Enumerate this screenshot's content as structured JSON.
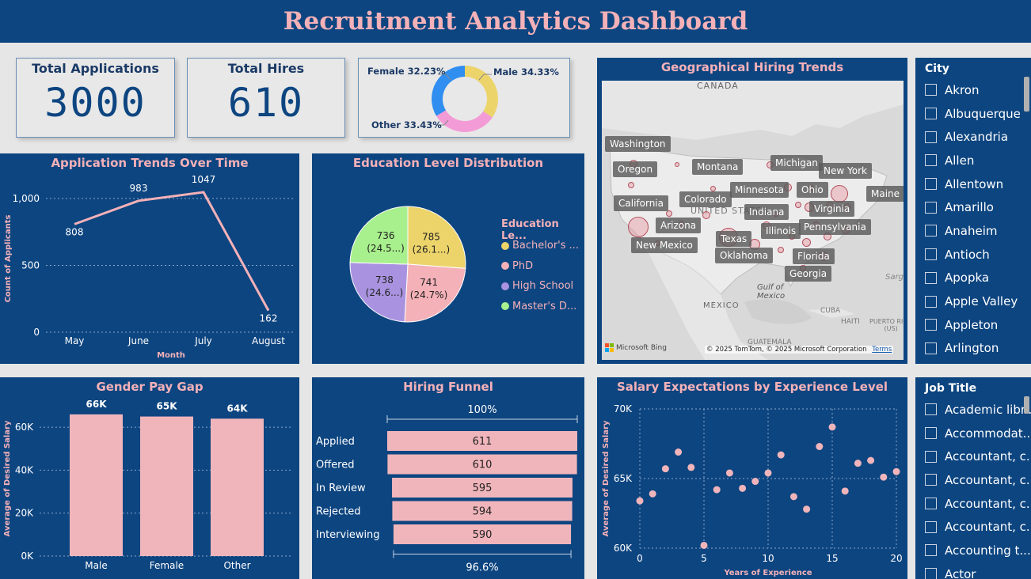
{
  "header": {
    "title": "Recruitment Analytics Dashboard"
  },
  "kpis": {
    "total_applications": {
      "label": "Total Applications",
      "value": "3000"
    },
    "total_hires": {
      "label": "Total Hires",
      "value": "610"
    }
  },
  "gender_donut": {
    "female": "Female 32.23%",
    "male": "Male 34.33%",
    "other": "Other 33.43%",
    "colors": {
      "female": "#2f8ef0",
      "male": "#ecd46b",
      "other": "#f39bd6"
    }
  },
  "application_trends": {
    "title": "Application Trends Over Time",
    "xlabel": "Month",
    "ylabel": "Count of Applicants",
    "y_ticks": [
      "0",
      "500",
      "1,000"
    ]
  },
  "education": {
    "title": "Education Level Distribution",
    "legend_title": "Education Le...",
    "legend": [
      "Bachelor's ...",
      "PhD",
      "High School",
      "Master's D..."
    ],
    "slice_labels": [
      {
        "v": "785",
        "p": "(26.1...)"
      },
      {
        "v": "741",
        "p": "(24.7%)"
      },
      {
        "v": "738",
        "p": "(24.6...)"
      },
      {
        "v": "736",
        "p": "(24.5...)"
      }
    ]
  },
  "map": {
    "title": "Geographical Hiring Trends",
    "countries": {
      "canada": "CANADA",
      "mexico": "MEXICO",
      "us": "UNITED STATES",
      "gulf": "Gulf of\nMexico",
      "cuba": "CUBA",
      "haiti": "HAITI",
      "pr": "PUERTO RICO\n(US)",
      "guatemala": "GUATEMALA",
      "sargasso": "Sarg"
    },
    "states": [
      "Washington",
      "Oregon",
      "Montana",
      "Michigan",
      "New York",
      "Minnesota",
      "Ohio",
      "Maine",
      "California",
      "Colorado",
      "Indiana",
      "Virginia",
      "Arizona",
      "Illinois",
      "Pennsylvania",
      "Texas",
      "New Mexico",
      "Oklahoma",
      "Florida",
      "Georgia"
    ],
    "bing": "Microsoft Bing",
    "copyright": "© 2025 TomTom, © 2025 Microsoft Corporation",
    "terms": "Terms"
  },
  "city_slicer": {
    "title": "City",
    "items": [
      "Akron",
      "Albuquerque",
      "Alexandria",
      "Allen",
      "Allentown",
      "Amarillo",
      "Anaheim",
      "Antioch",
      "Apopka",
      "Apple Valley",
      "Appleton",
      "Arlington"
    ]
  },
  "gender_pay": {
    "title": "Gender Pay Gap",
    "ylabel": "Average of Desired Salary",
    "y_ticks": [
      "0K",
      "20K",
      "40K",
      "60K"
    ],
    "data_labels": [
      "66K",
      "65K",
      "64K"
    ]
  },
  "funnel": {
    "title": "Hiring Funnel",
    "top_pct": "100%",
    "bottom_pct": "96.6%",
    "stages": [
      "Applied",
      "Offered",
      "In Review",
      "Rejected",
      "Interviewing"
    ]
  },
  "salary_scatter": {
    "title": "Salary Expectations by Experience Level",
    "xlabel": "Years of Experience",
    "ylabel": "Average of Desired Salary",
    "y_ticks": [
      "60K",
      "65K",
      "70K"
    ],
    "x_ticks": [
      "0",
      "5",
      "10",
      "15",
      "20"
    ]
  },
  "job_slicer": {
    "title": "Job Title",
    "items": [
      "Academic libr...",
      "Accommodat...",
      "Accountant, c...",
      "Accountant, c...",
      "Accountant, c...",
      "Accountant, c...",
      "Accounting t...",
      "Actor"
    ]
  },
  "chart_data": [
    {
      "type": "line",
      "title": "Application Trends Over Time",
      "xlabel": "Month",
      "ylabel": "Count of Applicants",
      "categories": [
        "May",
        "June",
        "July",
        "August"
      ],
      "values": [
        808,
        983,
        1047,
        162
      ],
      "ylim": [
        0,
        1100
      ],
      "grid": true
    },
    {
      "type": "pie",
      "title": "Education Level Distribution",
      "categories": [
        "Bachelor's ...",
        "PhD",
        "High School",
        "Master's D..."
      ],
      "values": [
        785,
        741,
        738,
        736
      ],
      "colors": [
        "#ecd46b",
        "#f4b1b8",
        "#a993e0",
        "#a8ef8d"
      ]
    },
    {
      "type": "bar",
      "title": "Gender Pay Gap",
      "ylabel": "Average of Desired Salary",
      "categories": [
        "Male",
        "Female",
        "Other"
      ],
      "values": [
        66000,
        65000,
        64000
      ],
      "ylim": [
        0,
        70000
      ]
    },
    {
      "type": "bar",
      "title": "Hiring Funnel",
      "categories": [
        "Applied",
        "Offered",
        "In Review",
        "Rejected",
        "Interviewing"
      ],
      "values": [
        611,
        610,
        595,
        594,
        590
      ]
    },
    {
      "type": "scatter",
      "title": "Salary Expectations by Experience Level",
      "xlabel": "Years of Experience",
      "ylabel": "Average of Desired Salary",
      "x": [
        0,
        1,
        2,
        3,
        4,
        5,
        6,
        7,
        8,
        9,
        10,
        11,
        12,
        13,
        14,
        15,
        16,
        17,
        18,
        19,
        20
      ],
      "y": [
        63400,
        63900,
        65700,
        66900,
        65800,
        60200,
        64200,
        65400,
        64300,
        64800,
        65400,
        66700,
        63700,
        62800,
        67300,
        68700,
        64100,
        66100,
        66300,
        65100,
        65500
      ],
      "xlim": [
        0,
        20
      ],
      "ylim": [
        60000,
        70000
      ]
    }
  ]
}
